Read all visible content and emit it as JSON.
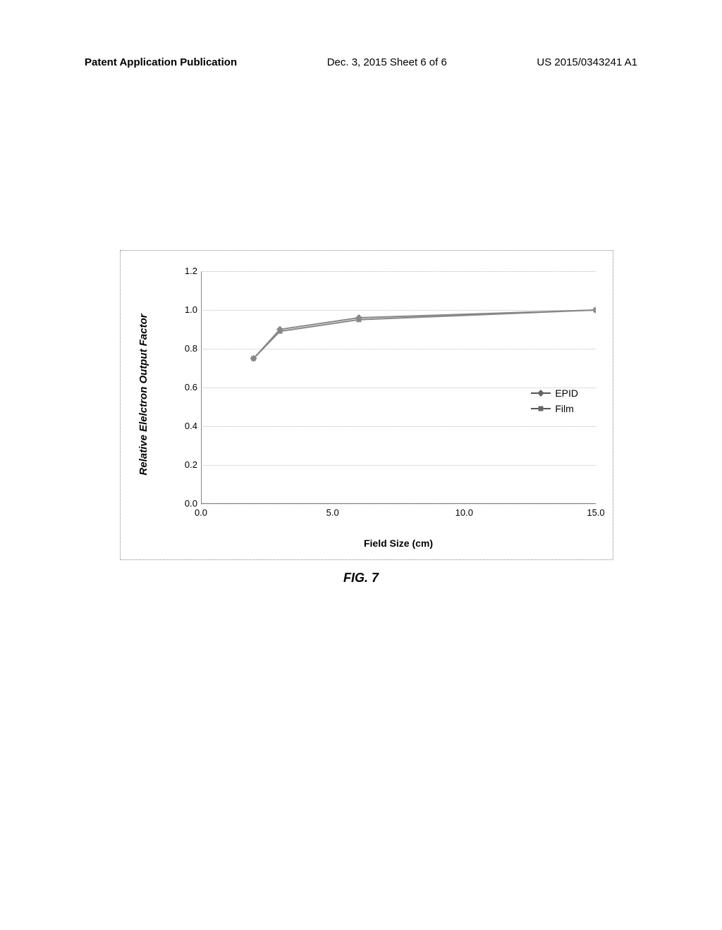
{
  "header": {
    "left": "Patent Application Publication",
    "center": "Dec. 3, 2015   Sheet 6 of 6",
    "right": "US 2015/0343241 A1"
  },
  "chart": {
    "type": "line",
    "ylabel": "Relative Elelctron Output Factor",
    "xlabel": "Field Size (cm)",
    "ylim": [
      0.0,
      1.2
    ],
    "xlim": [
      0.0,
      15.0
    ],
    "yticks": [
      0.0,
      0.2,
      0.4,
      0.6,
      0.8,
      1.0,
      1.2
    ],
    "xticks": [
      0.0,
      5.0,
      10.0,
      15.0
    ],
    "ytick_labels": [
      "0.0",
      "0.2",
      "0.4",
      "0.6",
      "0.8",
      "1.0",
      "1.2"
    ],
    "xtick_labels": [
      "0.0",
      "5.0",
      "10.0",
      "15.0"
    ],
    "grid_color": "#bbbbbb",
    "background_color": "#ffffff",
    "series": [
      {
        "name": "EPID",
        "marker": "diamond",
        "color": "#777777",
        "x": [
          2.0,
          3.0,
          6.0,
          15.0
        ],
        "y": [
          0.75,
          0.9,
          0.96,
          1.0
        ]
      },
      {
        "name": "Film",
        "marker": "square",
        "color": "#777777",
        "x": [
          2.0,
          3.0,
          6.0,
          15.0
        ],
        "y": [
          0.75,
          0.89,
          0.95,
          1.0
        ]
      }
    ],
    "legend": {
      "items": [
        "EPID",
        "Film"
      ]
    }
  },
  "caption": "FIG. 7"
}
